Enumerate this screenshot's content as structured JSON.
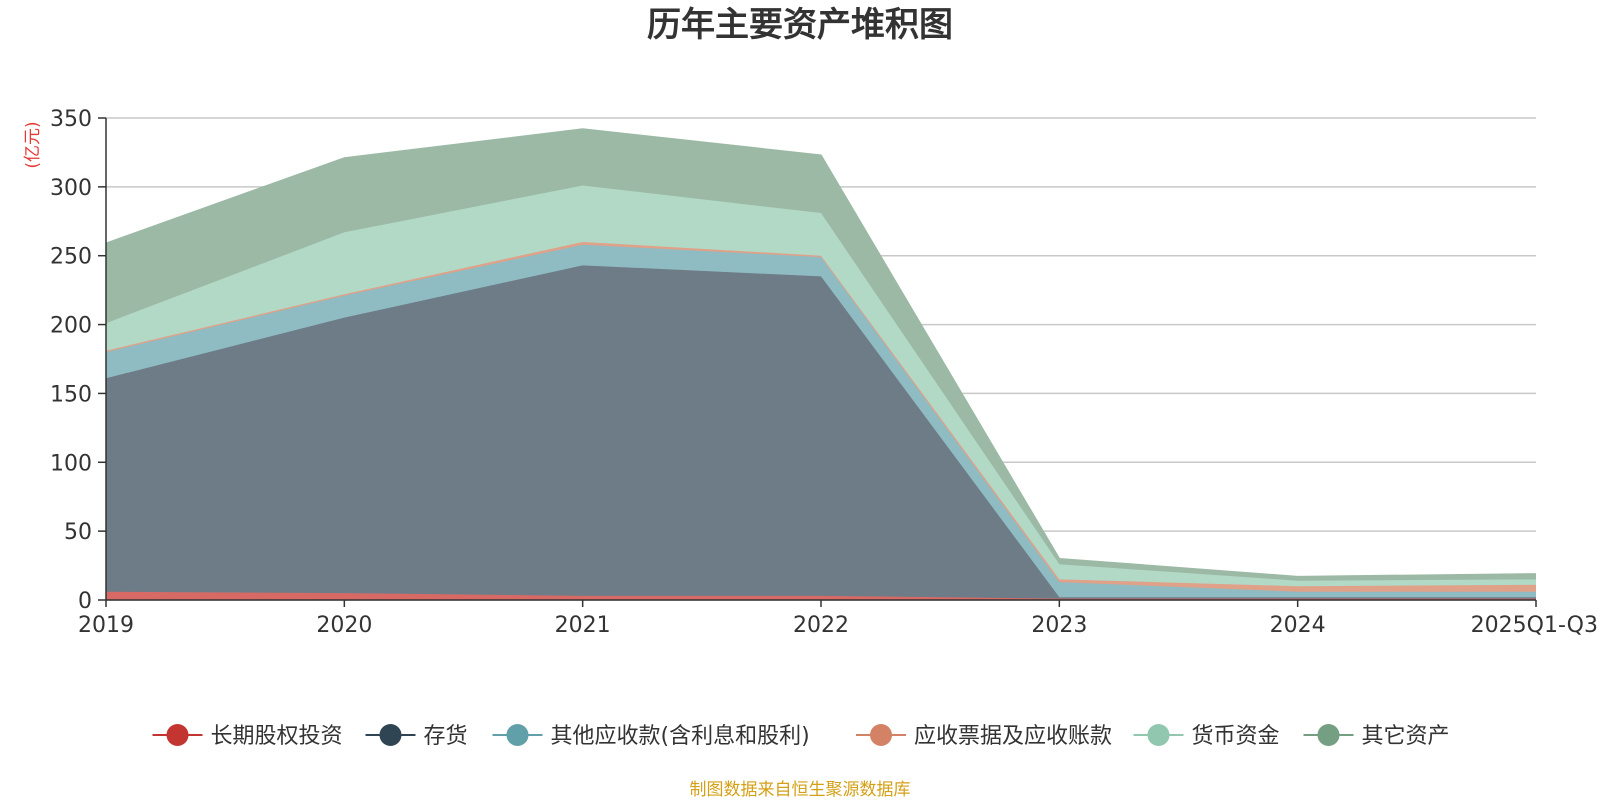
{
  "chart_data": {
    "type": "area",
    "stacked": true,
    "title": "历年主要资产堆积图",
    "ylabel": "(亿元)",
    "xlabel": "",
    "categories": [
      "2019",
      "2020",
      "2021",
      "2022",
      "2023",
      "2024",
      "2025Q1-Q3"
    ],
    "ylim": [
      0,
      350
    ],
    "yticks": [
      0,
      50,
      100,
      150,
      200,
      250,
      300,
      350
    ],
    "grid": true,
    "legend_position": "bottom",
    "series": [
      {
        "name": "长期股权投资",
        "color": "#c23531",
        "fill": "#d86a66",
        "values": [
          6,
          5,
          3,
          3,
          1,
          1,
          1
        ]
      },
      {
        "name": "存货",
        "color": "#2f4554",
        "fill": "#6e7c87",
        "values": [
          155,
          200,
          240,
          232,
          1,
          1,
          1
        ]
      },
      {
        "name": "其他应收款(含利息和股利)",
        "color": "#61a0a8",
        "fill": "#8fbcc2",
        "values": [
          19,
          16,
          15,
          14,
          11,
          4,
          4
        ]
      },
      {
        "name": "应收票据及应收账款",
        "color": "#d48265",
        "fill": "#e0a189",
        "values": [
          1,
          1,
          2,
          1,
          2,
          4,
          5
        ]
      },
      {
        "name": "货币资金",
        "color": "#91c7ae",
        "fill": "#b2d8c6",
        "values": [
          20,
          45,
          41,
          31,
          11,
          4,
          4
        ]
      },
      {
        "name": "其它资产",
        "color": "#749f83",
        "fill": "#9bb9a5",
        "values": [
          58,
          54,
          41,
          42,
          4,
          3,
          4
        ]
      }
    ],
    "source": "制图数据来自恒生聚源数据库"
  }
}
